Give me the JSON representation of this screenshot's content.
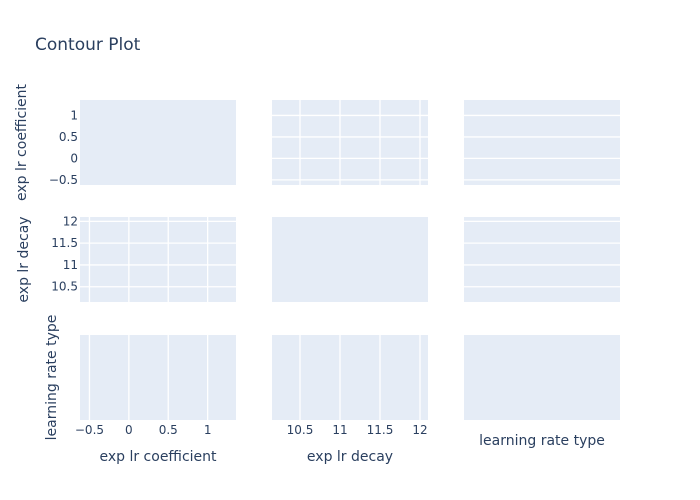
{
  "chart_data": {
    "type": "contour",
    "title": "Contour Plot",
    "variables": [
      "exp lr coefficient",
      "exp lr decay",
      "learning rate type"
    ],
    "axes": {
      "exp lr coefficient": {
        "range": [
          -0.62,
          1.36
        ],
        "ticks": [
          -0.5,
          0,
          0.5,
          1
        ],
        "tick_labels": [
          "−0.5",
          "0",
          "0.5",
          "1"
        ]
      },
      "exp lr decay": {
        "range": [
          10.15,
          12.1
        ],
        "ticks": [
          10.5,
          11,
          11.5,
          12
        ],
        "tick_labels": [
          "10.5",
          "11",
          "11.5",
          "12"
        ]
      },
      "learning rate type": {
        "range": null,
        "ticks": [],
        "tick_labels": []
      }
    },
    "grid": true,
    "layout": "3x3 scatter-matrix of contour panels, no contour data plotted"
  },
  "colors": {
    "panel": "#e5ecf6",
    "grid": "#ffffff",
    "text": "#2a3f5f"
  }
}
